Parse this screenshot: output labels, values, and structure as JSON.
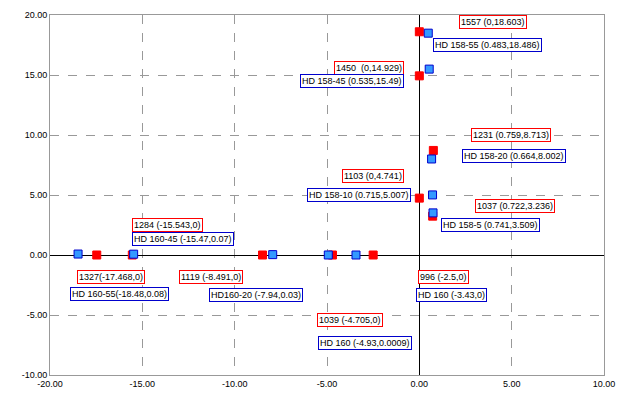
{
  "chart_data": {
    "type": "scatter",
    "grid": true,
    "marker": "square",
    "xlim": [
      -20,
      10
    ],
    "xticks": [
      {
        "value": -20,
        "label": "-20.00"
      },
      {
        "value": -15,
        "label": "-15.00"
      },
      {
        "value": -10,
        "label": "-10.00"
      },
      {
        "value": -5,
        "label": "-5.00"
      },
      {
        "value": 0,
        "label": "0.00"
      },
      {
        "value": 5,
        "label": "5.00"
      },
      {
        "value": 10,
        "label": "10.00"
      }
    ],
    "ylim": [
      -10,
      20
    ],
    "yticks": [
      {
        "value": -10,
        "label": "-10.00"
      },
      {
        "value": -5,
        "label": "-5.00"
      },
      {
        "value": 0,
        "label": "0.00"
      },
      {
        "value": 5,
        "label": "5.00"
      },
      {
        "value": 10,
        "label": "10.00"
      },
      {
        "value": 15,
        "label": "15.00"
      },
      {
        "value": 20,
        "label": "20.00"
      }
    ],
    "series": [
      {
        "color": "#ff0000",
        "x": [
          0,
          0,
          0.759,
          0,
          0.722,
          -17.468,
          -15.543,
          -8.491,
          -4.705,
          -2.5
        ],
        "y": [
          18.603,
          14.929,
          8.713,
          4.741,
          3.236,
          0,
          0,
          0,
          0,
          0
        ],
        "labels": [
          "1557 (0,18.603)",
          "1450  (0,14.929)",
          "1231 (0.759,8.713)",
          "1103 (0,4.741)",
          "1037 (0.722,3.236)",
          "1327(-17.468,0)",
          "1284 (-15.543,0)",
          "1119 (-8.491,0)",
          "1039 (-4.705,0)",
          "996 (-2.5,0)"
        ]
      },
      {
        "color": "#3399ff",
        "x": [
          0.483,
          0.535,
          0.664,
          0.715,
          0.741,
          -18.48,
          -15.47,
          -7.94,
          -3.43,
          -4.93
        ],
        "y": [
          18.486,
          15.49,
          8.002,
          5.007,
          3.509,
          0.08,
          0.07,
          0.03,
          0,
          0.0009
        ],
        "labels": [
          "HD 158-55 (0.483,18.486)",
          "HD 158-45 (0.535,15.49)",
          "HD 158-20 (0.664,8.002)",
          "HD 158-10 (0.715,5.007)",
          "HD 158-5 (0.741,3.509)",
          "HD 160-55(-18.48,0.08)",
          "HD 160-45 (-15.47,0.07)",
          "HD160-20 (-7.94,0.03)",
          "HD 160 (-3.43,0)",
          "HD 160 (-4.93,0.0009)"
        ]
      }
    ]
  }
}
